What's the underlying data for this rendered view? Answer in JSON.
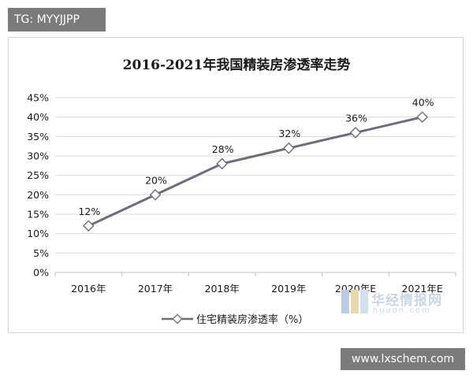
{
  "badge_top": "TG: MYYJJPP",
  "badge_bottom": "www.lxschem.com",
  "watermark": {
    "name": "华经情报网",
    "url": "huaon.com"
  },
  "colors": {
    "series_line": "#6e6e7a",
    "marker_fill": "#ffffff",
    "grid": "#d9d9d9",
    "axis": "#bfbfbf"
  },
  "chart_data": {
    "type": "line",
    "title": "2016-2021年我国精装房渗透率走势",
    "categories": [
      "2016年",
      "2017年",
      "2018年",
      "2019年",
      "2020年E",
      "2021年E"
    ],
    "y_ticks": [
      "0%",
      "5%",
      "10%",
      "15%",
      "20%",
      "25%",
      "30%",
      "35%",
      "40%",
      "45%"
    ],
    "ylim": [
      0,
      45
    ],
    "grid": true,
    "legend_position": "bottom",
    "series": [
      {
        "name": "住宅精装房渗透率（%）",
        "values": [
          12,
          20,
          28,
          32,
          36,
          40
        ],
        "labels": [
          "12%",
          "20%",
          "28%",
          "32%",
          "36%",
          "40%"
        ],
        "marker": "diamond"
      }
    ]
  }
}
